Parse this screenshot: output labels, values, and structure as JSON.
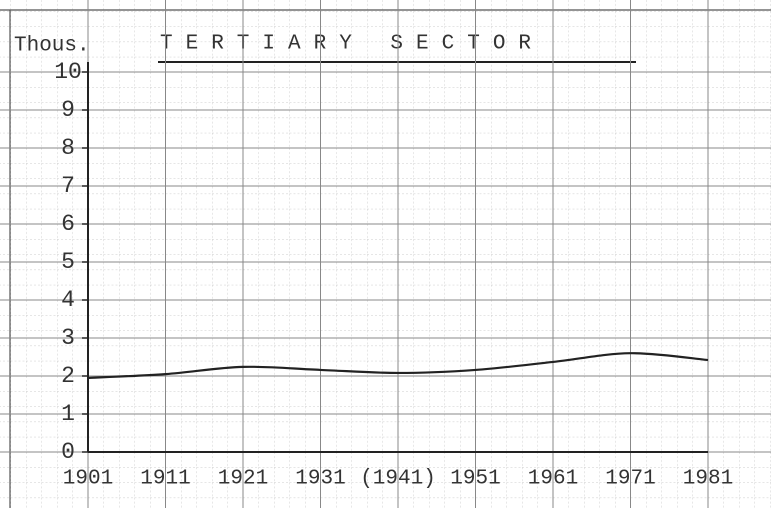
{
  "chart_data": {
    "type": "line",
    "title": "TERTIARY SECTOR",
    "y_label": "Thous.",
    "x": [
      1901,
      1911,
      1921,
      1931,
      1941,
      1951,
      1961,
      1971,
      1981
    ],
    "series": [
      {
        "name": "Tertiary sector",
        "color": "#222222",
        "values": [
          1.95,
          2.05,
          2.24,
          2.16,
          2.08,
          2.16,
          2.37,
          2.6,
          2.42
        ]
      }
    ],
    "xlim": [
      1901,
      1981
    ],
    "xticks": [
      1901,
      1911,
      1921,
      1931,
      {
        "value": 1941,
        "label": "(1941)"
      },
      1951,
      1961,
      1971,
      1981
    ],
    "ylim": [
      0,
      10
    ],
    "yticks": [
      0,
      1,
      2,
      3,
      4,
      5,
      6,
      7,
      8,
      9,
      10
    ],
    "grid": true
  }
}
